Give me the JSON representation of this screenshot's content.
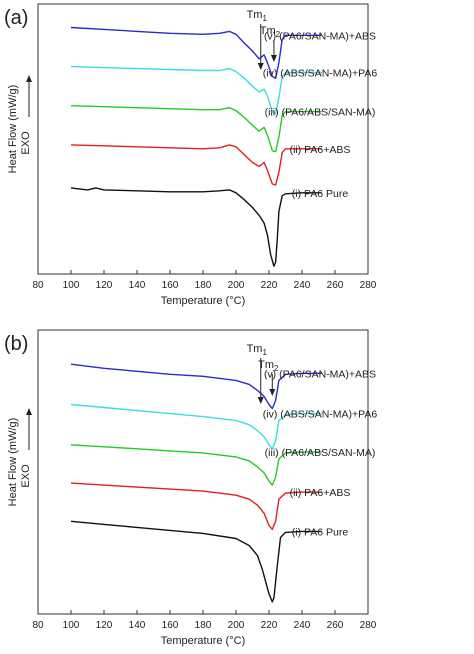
{
  "chart_data": [
    {
      "type": "line",
      "panel_label": "(a)",
      "xlabel": "Temperature (°C)",
      "ylabel": "Heat Flow (mW/g)",
      "exo_label": "EXO",
      "xlim": [
        80,
        280
      ],
      "x_ticks": [
        80,
        100,
        120,
        140,
        160,
        180,
        200,
        220,
        240,
        260,
        280
      ],
      "grid": false,
      "annotations": [
        {
          "label_base": "Tm",
          "label_sub": "1",
          "x": 215
        },
        {
          "label_base": "Tm",
          "label_sub": "2",
          "x": 223
        }
      ],
      "series": [
        {
          "name": "(v) (PA6/SAN-MA)+ABS",
          "color": "#2a2ad0",
          "points": [
            [
              100,
              0.88
            ],
            [
              120,
              0.87
            ],
            [
              140,
              0.86
            ],
            [
              160,
              0.85
            ],
            [
              180,
              0.845
            ],
            [
              190,
              0.85
            ],
            [
              196,
              0.86
            ],
            [
              200,
              0.845
            ],
            [
              205,
              0.8
            ],
            [
              210,
              0.76
            ],
            [
              214,
              0.72
            ],
            [
              217,
              0.74
            ],
            [
              219,
              0.7
            ],
            [
              222,
              0.63
            ],
            [
              224,
              0.62
            ],
            [
              226,
              0.7
            ],
            [
              228,
              0.82
            ],
            [
              230,
              0.84
            ],
            [
              240,
              0.84
            ],
            [
              252,
              0.84
            ]
          ]
        },
        {
          "name": "(iv) (ABS/SAN-MA)+PA6",
          "color": "#3cdce6",
          "points": [
            [
              100,
              0.68
            ],
            [
              120,
              0.675
            ],
            [
              140,
              0.67
            ],
            [
              160,
              0.665
            ],
            [
              180,
              0.66
            ],
            [
              190,
              0.66
            ],
            [
              196,
              0.67
            ],
            [
              200,
              0.655
            ],
            [
              205,
              0.62
            ],
            [
              210,
              0.58
            ],
            [
              214,
              0.55
            ],
            [
              217,
              0.565
            ],
            [
              219,
              0.53
            ],
            [
              222,
              0.45
            ],
            [
              224,
              0.44
            ],
            [
              226,
              0.52
            ],
            [
              228,
              0.63
            ],
            [
              230,
              0.65
            ],
            [
              240,
              0.65
            ],
            [
              252,
              0.65
            ]
          ]
        },
        {
          "name": "(iii) (PA6/ABS/SAN-MA)",
          "color": "#22cc22",
          "points": [
            [
              100,
              0.48
            ],
            [
              120,
              0.475
            ],
            [
              140,
              0.47
            ],
            [
              160,
              0.465
            ],
            [
              180,
              0.46
            ],
            [
              190,
              0.46
            ],
            [
              196,
              0.47
            ],
            [
              200,
              0.455
            ],
            [
              205,
              0.42
            ],
            [
              210,
              0.38
            ],
            [
              214,
              0.35
            ],
            [
              217,
              0.37
            ],
            [
              219,
              0.33
            ],
            [
              222,
              0.25
            ],
            [
              224,
              0.245
            ],
            [
              226,
              0.32
            ],
            [
              228,
              0.43
            ],
            [
              230,
              0.45
            ],
            [
              240,
              0.45
            ],
            [
              252,
              0.45
            ]
          ]
        },
        {
          "name": "(ii) PA6+ABS",
          "color": "#e02020",
          "points": [
            [
              100,
              0.28
            ],
            [
              120,
              0.275
            ],
            [
              140,
              0.27
            ],
            [
              160,
              0.265
            ],
            [
              180,
              0.26
            ],
            [
              190,
              0.265
            ],
            [
              196,
              0.28
            ],
            [
              200,
              0.27
            ],
            [
              205,
              0.23
            ],
            [
              210,
              0.19
            ],
            [
              214,
              0.17
            ],
            [
              217,
              0.19
            ],
            [
              219,
              0.15
            ],
            [
              222,
              0.08
            ],
            [
              224,
              0.075
            ],
            [
              226,
              0.14
            ],
            [
              228,
              0.24
            ],
            [
              230,
              0.26
            ],
            [
              240,
              0.26
            ],
            [
              252,
              0.26
            ]
          ]
        },
        {
          "name": "(i) PA6 Pure",
          "color": "#111111",
          "points": [
            [
              100,
              0.06
            ],
            [
              110,
              0.05
            ],
            [
              115,
              0.06
            ],
            [
              120,
              0.05
            ],
            [
              140,
              0.045
            ],
            [
              160,
              0.04
            ],
            [
              180,
              0.04
            ],
            [
              190,
              0.045
            ],
            [
              196,
              0.05
            ],
            [
              200,
              0.035
            ],
            [
              205,
              0.0
            ],
            [
              210,
              -0.04
            ],
            [
              214,
              -0.08
            ],
            [
              217,
              -0.12
            ],
            [
              219,
              -0.18
            ],
            [
              221,
              -0.28
            ],
            [
              223,
              -0.34
            ],
            [
              224,
              -0.32
            ],
            [
              225,
              -0.2
            ],
            [
              226,
              -0.06
            ],
            [
              228,
              0.02
            ],
            [
              230,
              0.03
            ],
            [
              240,
              0.035
            ],
            [
              252,
              0.035
            ]
          ]
        }
      ]
    },
    {
      "type": "line",
      "panel_label": "(b)",
      "xlabel": "Temperature (°C)",
      "ylabel": "Heat Flow (mW/g)",
      "exo_label": "EXO",
      "xlim": [
        80,
        280
      ],
      "x_ticks": [
        80,
        100,
        120,
        140,
        160,
        180,
        200,
        220,
        240,
        260,
        280
      ],
      "grid": false,
      "annotations": [
        {
          "label_base": "Tm",
          "label_sub": "1",
          "x": 215
        },
        {
          "label_base": "Tm",
          "label_sub": "2",
          "x": 222
        }
      ],
      "series": [
        {
          "name": "(v) (PA6/SAN-MA)+ABS",
          "color": "#2a2ad0",
          "points": [
            [
              100,
              0.88
            ],
            [
              120,
              0.86
            ],
            [
              140,
              0.845
            ],
            [
              160,
              0.83
            ],
            [
              180,
              0.82
            ],
            [
              200,
              0.8
            ],
            [
              208,
              0.78
            ],
            [
              213,
              0.75
            ],
            [
              217,
              0.72
            ],
            [
              220,
              0.68
            ],
            [
              222,
              0.66
            ],
            [
              224,
              0.7
            ],
            [
              226,
              0.8
            ],
            [
              230,
              0.83
            ],
            [
              240,
              0.835
            ],
            [
              252,
              0.835
            ]
          ]
        },
        {
          "name": "(iv) (ABS/SAN-MA)+PA6",
          "color": "#3cdce6",
          "points": [
            [
              100,
              0.68
            ],
            [
              120,
              0.665
            ],
            [
              140,
              0.65
            ],
            [
              160,
              0.635
            ],
            [
              180,
              0.62
            ],
            [
              200,
              0.6
            ],
            [
              208,
              0.58
            ],
            [
              213,
              0.55
            ],
            [
              217,
              0.52
            ],
            [
              220,
              0.48
            ],
            [
              222,
              0.46
            ],
            [
              224,
              0.5
            ],
            [
              226,
              0.6
            ],
            [
              230,
              0.63
            ],
            [
              240,
              0.635
            ],
            [
              252,
              0.635
            ]
          ]
        },
        {
          "name": "(iii) (PA6/ABS/SAN-MA)",
          "color": "#22cc22",
          "points": [
            [
              100,
              0.48
            ],
            [
              120,
              0.47
            ],
            [
              140,
              0.46
            ],
            [
              160,
              0.45
            ],
            [
              180,
              0.44
            ],
            [
              200,
              0.42
            ],
            [
              208,
              0.4
            ],
            [
              213,
              0.37
            ],
            [
              217,
              0.34
            ],
            [
              220,
              0.3
            ],
            [
              222,
              0.28
            ],
            [
              224,
              0.32
            ],
            [
              226,
              0.41
            ],
            [
              230,
              0.44
            ],
            [
              240,
              0.445
            ],
            [
              252,
              0.445
            ]
          ]
        },
        {
          "name": "(ii) PA6+ABS",
          "color": "#e02020",
          "points": [
            [
              100,
              0.29
            ],
            [
              120,
              0.28
            ],
            [
              140,
              0.27
            ],
            [
              160,
              0.26
            ],
            [
              180,
              0.25
            ],
            [
              200,
              0.23
            ],
            [
              208,
              0.21
            ],
            [
              213,
              0.18
            ],
            [
              217,
              0.14
            ],
            [
              220,
              0.08
            ],
            [
              222,
              0.06
            ],
            [
              224,
              0.1
            ],
            [
              226,
              0.21
            ],
            [
              230,
              0.24
            ],
            [
              240,
              0.245
            ],
            [
              252,
              0.245
            ]
          ]
        },
        {
          "name": "(i) PA6 Pure",
          "color": "#111111",
          "points": [
            [
              100,
              0.1
            ],
            [
              120,
              0.085
            ],
            [
              140,
              0.07
            ],
            [
              160,
              0.055
            ],
            [
              180,
              0.04
            ],
            [
              200,
              0.015
            ],
            [
              208,
              -0.02
            ],
            [
              213,
              -0.07
            ],
            [
              216,
              -0.14
            ],
            [
              218,
              -0.2
            ],
            [
              220,
              -0.26
            ],
            [
              222,
              -0.3
            ],
            [
              223,
              -0.28
            ],
            [
              225,
              -0.12
            ],
            [
              227,
              0.02
            ],
            [
              230,
              0.045
            ],
            [
              240,
              0.05
            ],
            [
              252,
              0.05
            ]
          ]
        }
      ]
    }
  ]
}
